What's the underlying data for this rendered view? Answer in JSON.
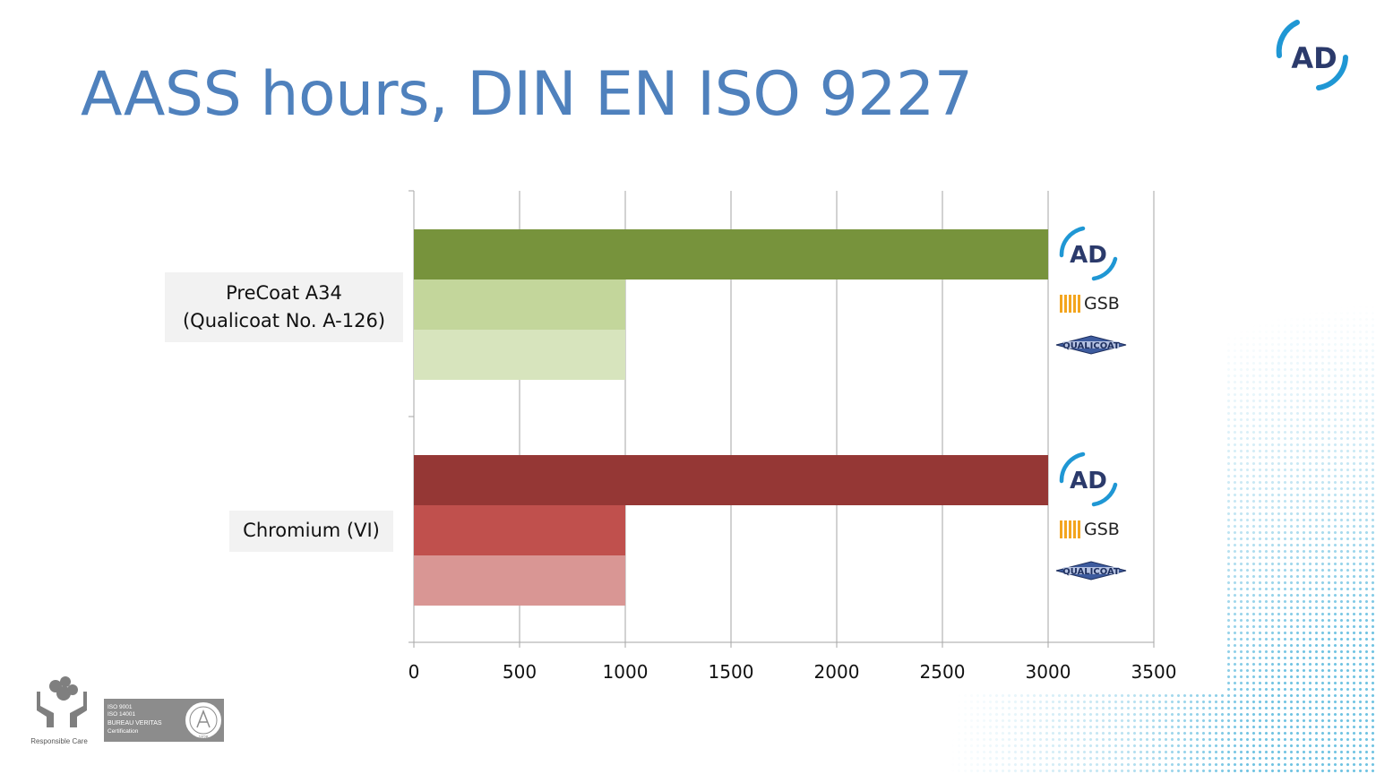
{
  "slide": {
    "title": "AASS hours, DIN EN ISO 9227",
    "brand_logo_text": "AD",
    "accent_color": "#4f81bd"
  },
  "chart_data": {
    "type": "bar",
    "orientation": "horizontal",
    "categories": [
      "PreCoat A34\n(Qualicoat No. A-126)",
      "Chromium (VI)"
    ],
    "groups": [
      {
        "category": "PreCoat A34\n(Qualicoat No. A-126)",
        "bars": [
          {
            "value": 3000,
            "color": "#77933c",
            "logo": "AD"
          },
          {
            "value": 1000,
            "color": "#c3d69b",
            "logo": "GSB"
          },
          {
            "value": 1000,
            "color": "#d7e4bd",
            "logo": "QUALICOAT"
          }
        ]
      },
      {
        "category": "Chromium (VI)",
        "bars": [
          {
            "value": 3000,
            "color": "#953735",
            "logo": "AD"
          },
          {
            "value": 1000,
            "color": "#c0504d",
            "logo": "GSB"
          },
          {
            "value": 1000,
            "color": "#d99694",
            "logo": "QUALICOAT"
          }
        ]
      }
    ],
    "xlim": [
      0,
      3500
    ],
    "xticks": [
      "0",
      "500",
      "1000",
      "1500",
      "2000",
      "2500",
      "3000",
      "3500"
    ],
    "grid": true,
    "xlabel": "",
    "ylabel": ""
  },
  "footer": {
    "responsible_care": "Responsible Care",
    "bv_lines": [
      "ISO 9001",
      "ISO 14001",
      "BUREAU VERITAS",
      "Certification"
    ],
    "bv_seal_year": "1828"
  }
}
